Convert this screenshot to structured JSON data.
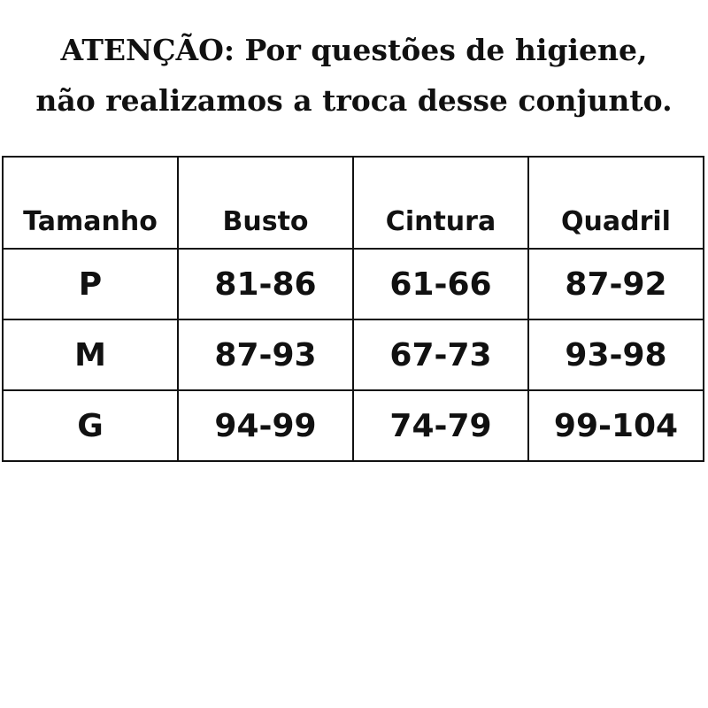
{
  "notice": {
    "line1": "ATENÇÃO: Por questões de higiene,",
    "line2": "não realizamos a troca desse conjunto."
  },
  "table": {
    "headers": [
      "Tamanho",
      "Busto",
      "Cintura",
      "Quadril"
    ],
    "rows": [
      [
        "P",
        "81-86",
        "61-66",
        "87-92"
      ],
      [
        "M",
        "87-93",
        "67-73",
        "93-98"
      ],
      [
        "G",
        "94-99",
        "74-79",
        "99-104"
      ]
    ]
  }
}
